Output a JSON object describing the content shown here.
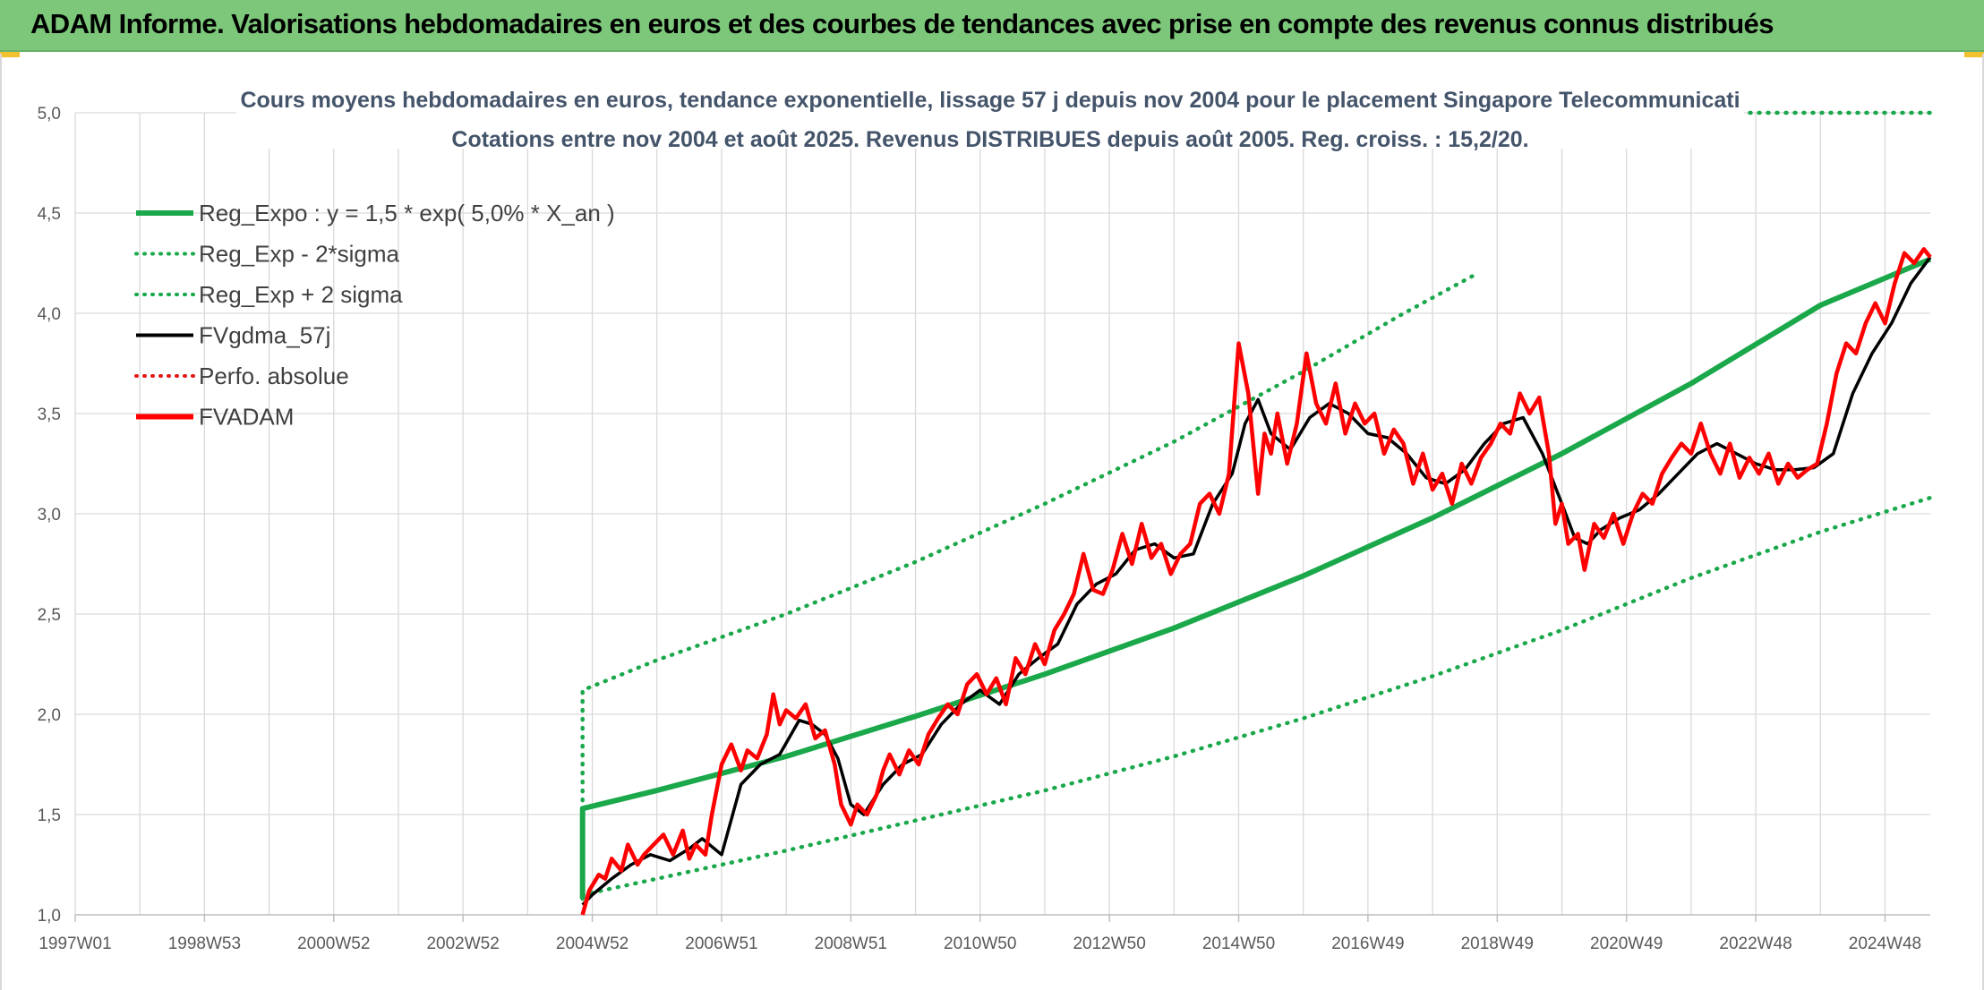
{
  "header": {
    "title": "ADAM Informe. Valorisations hebdomadaires en euros et des courbes de tendances avec prise en compte des revenus connus distribués"
  },
  "colors": {
    "header_bg": "#7cc77a",
    "trend": "#1aa84b",
    "band": "#1aa84b",
    "smooth": "#000000",
    "price": "#ff0000",
    "grid": "#d9d9d9"
  },
  "chart_data": {
    "type": "line",
    "title": "Cours moyens hebdomadaires en euros, tendance exponentielle, lissage 57 j depuis nov 2004 pour le placement Singapore Telecommunicati",
    "subtitle": "Cotations entre nov 2004 et août 2025. Revenus DISTRIBUES depuis août 2005. Reg. croiss. : 15,2/20.",
    "xlabel": "",
    "ylabel": "",
    "ylim": [
      1.0,
      5.0
    ],
    "xlim": [
      1997.0,
      2025.7
    ],
    "y_ticks": [
      "1,0",
      "1,5",
      "2,0",
      "2,5",
      "3,0",
      "3,5",
      "4,0",
      "4,5",
      "5,0"
    ],
    "x_ticks": [
      {
        "x": 1997.0,
        "label": "1997W01"
      },
      {
        "x": 1999.0,
        "label": "1998W53"
      },
      {
        "x": 2001.0,
        "label": "2000W52"
      },
      {
        "x": 2003.0,
        "label": "2002W52"
      },
      {
        "x": 2005.0,
        "label": "2004W52"
      },
      {
        "x": 2007.0,
        "label": "2006W51"
      },
      {
        "x": 2009.0,
        "label": "2008W51"
      },
      {
        "x": 2011.0,
        "label": "2010W50"
      },
      {
        "x": 2013.0,
        "label": "2012W50"
      },
      {
        "x": 2015.0,
        "label": "2014W50"
      },
      {
        "x": 2017.0,
        "label": "2016W49"
      },
      {
        "x": 2019.0,
        "label": "2018W49"
      },
      {
        "x": 2021.0,
        "label": "2020W49"
      },
      {
        "x": 2023.0,
        "label": "2022W48"
      },
      {
        "x": 2025.0,
        "label": "2024W48"
      }
    ],
    "grid": true,
    "legend_position": "top-left",
    "legend": [
      {
        "key": "trend",
        "label": "Reg_Expo : y = 1,5 * exp( 5,0% *  X_an )",
        "style": "solid-thick",
        "color": "#1aa84b"
      },
      {
        "key": "lower",
        "label": "Reg_Exp - 2*sigma",
        "style": "dotted",
        "color": "#1aa84b"
      },
      {
        "key": "upper",
        "label": "Reg_Exp + 2 sigma",
        "style": "dotted",
        "color": "#1aa84b"
      },
      {
        "key": "smooth",
        "label": "FVgdma_57j",
        "style": "solid",
        "color": "#000000"
      },
      {
        "key": "perf",
        "label": "Perfo. absolue",
        "style": "dotted",
        "color": "#e31a1a"
      },
      {
        "key": "price",
        "label": "FVADAM",
        "style": "solid-thick",
        "color": "#ff0000"
      }
    ],
    "series": [
      {
        "name": "Reg_Expo : y = 1,5 * exp( 5,0% *  X_an )",
        "style": "trend",
        "x": [
          2004.85,
          2004.85,
          2006.0,
          2008.0,
          2010.0,
          2012.0,
          2014.0,
          2016.0,
          2018.0,
          2020.0,
          2022.0,
          2024.0,
          2025.7
        ],
        "y": [
          1.08,
          1.53,
          1.62,
          1.79,
          1.99,
          2.2,
          2.43,
          2.69,
          2.98,
          3.3,
          3.65,
          4.04,
          4.27
        ]
      },
      {
        "name": "Reg_Exp - 2*sigma",
        "style": "band",
        "x": [
          2004.85,
          2006.0,
          2008.0,
          2010.0,
          2012.0,
          2014.0,
          2016.0,
          2018.0,
          2020.0,
          2022.0,
          2024.0,
          2025.7
        ],
        "y": [
          1.1,
          1.18,
          1.32,
          1.47,
          1.62,
          1.79,
          1.98,
          2.19,
          2.42,
          2.68,
          2.91,
          3.08
        ]
      },
      {
        "name": "Reg_Exp + 2 sigma",
        "style": "band",
        "x": [
          2004.85,
          2004.85,
          2006.0,
          2008.0,
          2010.0,
          2012.0,
          2014.0,
          2016.0,
          2017.5,
          2018.7
        ],
        "y": [
          1.08,
          2.12,
          2.27,
          2.5,
          2.76,
          3.05,
          3.36,
          3.71,
          3.99,
          4.2
        ]
      },
      {
        "name": "Reg_Exp + 2 sigma",
        "style": "band",
        "x": [
          2020.0,
          2025.7
        ],
        "y": [
          5.0,
          5.0
        ]
      },
      {
        "name": "FVgdma_57j",
        "style": "smooth",
        "x": [
          2004.85,
          2005.0,
          2005.3,
          2005.6,
          2005.9,
          2006.2,
          2006.5,
          2006.7,
          2007.0,
          2007.3,
          2007.6,
          2007.9,
          2008.2,
          2008.4,
          2008.6,
          2008.8,
          2009.0,
          2009.2,
          2009.5,
          2009.8,
          2010.1,
          2010.4,
          2010.7,
          2011.0,
          2011.3,
          2011.6,
          2011.9,
          2012.2,
          2012.5,
          2012.8,
          2013.1,
          2013.4,
          2013.7,
          2014.0,
          2014.3,
          2014.6,
          2014.9,
          2015.1,
          2015.3,
          2015.5,
          2015.8,
          2016.1,
          2016.4,
          2016.7,
          2017.0,
          2017.3,
          2017.6,
          2017.9,
          2018.2,
          2018.5,
          2018.8,
          2019.1,
          2019.4,
          2019.7,
          2020.0,
          2020.2,
          2020.4,
          2020.6,
          2020.9,
          2021.2,
          2021.5,
          2021.8,
          2022.1,
          2022.4,
          2022.7,
          2023.0,
          2023.3,
          2023.6,
          2023.9,
          2024.2,
          2024.5,
          2024.8,
          2025.1,
          2025.4,
          2025.7
        ],
        "y": [
          1.05,
          1.1,
          1.18,
          1.25,
          1.3,
          1.27,
          1.33,
          1.38,
          1.3,
          1.65,
          1.75,
          1.8,
          1.97,
          1.95,
          1.9,
          1.78,
          1.55,
          1.5,
          1.65,
          1.75,
          1.8,
          1.95,
          2.05,
          2.12,
          2.05,
          2.2,
          2.28,
          2.35,
          2.55,
          2.65,
          2.7,
          2.82,
          2.85,
          2.78,
          2.8,
          3.05,
          3.2,
          3.45,
          3.57,
          3.4,
          3.32,
          3.48,
          3.55,
          3.5,
          3.4,
          3.38,
          3.3,
          3.18,
          3.15,
          3.22,
          3.35,
          3.45,
          3.48,
          3.3,
          3.05,
          2.88,
          2.85,
          2.92,
          2.98,
          3.02,
          3.1,
          3.2,
          3.3,
          3.35,
          3.3,
          3.25,
          3.22,
          3.22,
          3.23,
          3.3,
          3.6,
          3.8,
          3.95,
          4.15,
          4.28
        ]
      },
      {
        "name": "FVADAM",
        "style": "price",
        "x": [
          2004.85,
          2004.95,
          2005.1,
          2005.2,
          2005.3,
          2005.45,
          2005.55,
          2005.7,
          2005.8,
          2005.95,
          2006.1,
          2006.25,
          2006.4,
          2006.5,
          2006.6,
          2006.75,
          2006.85,
          2007.0,
          2007.15,
          2007.3,
          2007.4,
          2007.55,
          2007.7,
          2007.8,
          2007.9,
          2008.0,
          2008.15,
          2008.3,
          2008.45,
          2008.6,
          2008.75,
          2008.85,
          2009.0,
          2009.1,
          2009.25,
          2009.4,
          2009.5,
          2009.6,
          2009.75,
          2009.9,
          2010.05,
          2010.2,
          2010.35,
          2010.5,
          2010.65,
          2010.8,
          2010.95,
          2011.1,
          2011.25,
          2011.4,
          2011.55,
          2011.7,
          2011.85,
          2012.0,
          2012.15,
          2012.3,
          2012.45,
          2012.6,
          2012.75,
          2012.9,
          2013.05,
          2013.2,
          2013.35,
          2013.5,
          2013.65,
          2013.8,
          2013.95,
          2014.1,
          2014.25,
          2014.4,
          2014.55,
          2014.7,
          2014.85,
          2015.0,
          2015.15,
          2015.3,
          2015.4,
          2015.5,
          2015.6,
          2015.75,
          2015.9,
          2016.05,
          2016.2,
          2016.35,
          2016.5,
          2016.65,
          2016.8,
          2016.95,
          2017.1,
          2017.25,
          2017.4,
          2017.55,
          2017.7,
          2017.85,
          2018.0,
          2018.15,
          2018.3,
          2018.45,
          2018.6,
          2018.75,
          2018.9,
          2019.05,
          2019.2,
          2019.35,
          2019.5,
          2019.65,
          2019.8,
          2019.9,
          2020.0,
          2020.1,
          2020.25,
          2020.35,
          2020.5,
          2020.65,
          2020.8,
          2020.95,
          2021.1,
          2021.25,
          2021.4,
          2021.55,
          2021.7,
          2021.85,
          2022.0,
          2022.15,
          2022.3,
          2022.45,
          2022.6,
          2022.75,
          2022.9,
          2023.05,
          2023.2,
          2023.35,
          2023.5,
          2023.65,
          2023.8,
          2023.95,
          2024.1,
          2024.25,
          2024.4,
          2024.55,
          2024.7,
          2024.85,
          2025.0,
          2025.15,
          2025.3,
          2025.45,
          2025.6,
          2025.7
        ],
        "y": [
          1.0,
          1.12,
          1.2,
          1.18,
          1.28,
          1.22,
          1.35,
          1.25,
          1.3,
          1.35,
          1.4,
          1.3,
          1.42,
          1.28,
          1.35,
          1.3,
          1.5,
          1.75,
          1.85,
          1.72,
          1.82,
          1.78,
          1.9,
          2.1,
          1.95,
          2.02,
          1.98,
          2.05,
          1.88,
          1.92,
          1.75,
          1.55,
          1.45,
          1.55,
          1.5,
          1.6,
          1.72,
          1.8,
          1.7,
          1.82,
          1.75,
          1.9,
          1.98,
          2.05,
          2.0,
          2.15,
          2.2,
          2.1,
          2.18,
          2.05,
          2.28,
          2.2,
          2.35,
          2.25,
          2.42,
          2.5,
          2.6,
          2.8,
          2.62,
          2.6,
          2.72,
          2.9,
          2.75,
          2.95,
          2.78,
          2.85,
          2.7,
          2.8,
          2.85,
          3.05,
          3.1,
          3.0,
          3.2,
          3.85,
          3.6,
          3.1,
          3.4,
          3.3,
          3.5,
          3.25,
          3.45,
          3.8,
          3.55,
          3.45,
          3.65,
          3.4,
          3.55,
          3.45,
          3.5,
          3.3,
          3.42,
          3.35,
          3.15,
          3.3,
          3.12,
          3.2,
          3.05,
          3.25,
          3.15,
          3.28,
          3.35,
          3.45,
          3.4,
          3.6,
          3.5,
          3.58,
          3.3,
          2.95,
          3.05,
          2.85,
          2.9,
          2.72,
          2.95,
          2.88,
          3.0,
          2.85,
          3.0,
          3.1,
          3.05,
          3.2,
          3.28,
          3.35,
          3.3,
          3.45,
          3.3,
          3.2,
          3.35,
          3.18,
          3.28,
          3.2,
          3.3,
          3.15,
          3.25,
          3.18,
          3.22,
          3.25,
          3.45,
          3.7,
          3.85,
          3.8,
          3.95,
          4.05,
          3.95,
          4.15,
          4.3,
          4.25,
          4.32,
          4.28
        ]
      }
    ]
  }
}
